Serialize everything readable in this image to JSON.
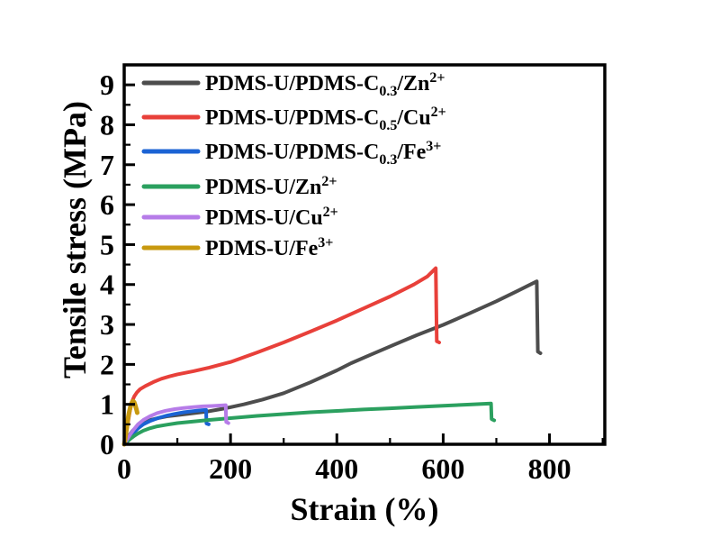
{
  "chart_data": {
    "type": "line",
    "title": "",
    "xlabel": "Strain (%)",
    "ylabel": "Tensile stress (MPa)",
    "xlim": [
      0,
      904
    ],
    "ylim": [
      0,
      9.5
    ],
    "x_major_ticks": [
      0,
      200,
      400,
      600,
      800
    ],
    "x_minor_ticks": [
      100,
      300,
      500,
      700,
      900
    ],
    "y_major_ticks": [
      0,
      1,
      2,
      3,
      4,
      5,
      6,
      7,
      8,
      9
    ],
    "y_minor_ticks": [
      0.5,
      1.5,
      2.5,
      3.5,
      4.5,
      5.5,
      6.5,
      7.5,
      8.5
    ],
    "grid": false,
    "legend_position": "top-left-inside",
    "series": [
      {
        "name": "PDMS-U/PDMS-C_{0.3}/Zn^{2+}",
        "color": "#4d4d4d",
        "width": 4,
        "points": [
          [
            0,
            0
          ],
          [
            4,
            0.1
          ],
          [
            9,
            0.22
          ],
          [
            16,
            0.34
          ],
          [
            25,
            0.45
          ],
          [
            36,
            0.54
          ],
          [
            50,
            0.61
          ],
          [
            65,
            0.66
          ],
          [
            80,
            0.7
          ],
          [
            100,
            0.73
          ],
          [
            125,
            0.77
          ],
          [
            156,
            0.82
          ],
          [
            190,
            0.9
          ],
          [
            225,
            1.0
          ],
          [
            260,
            1.12
          ],
          [
            300,
            1.28
          ],
          [
            350,
            1.55
          ],
          [
            400,
            1.85
          ],
          [
            427,
            2.03
          ],
          [
            460,
            2.22
          ],
          [
            500,
            2.45
          ],
          [
            550,
            2.73
          ],
          [
            600,
            2.99
          ],
          [
            650,
            3.28
          ],
          [
            700,
            3.58
          ],
          [
            740,
            3.84
          ],
          [
            776,
            4.08
          ],
          [
            778,
            2.32
          ],
          [
            783,
            2.28
          ]
        ]
      },
      {
        "name": "PDMS-U/PDMS-C_{0.5}/Cu^{2+}",
        "color": "#e8403a",
        "width": 4,
        "points": [
          [
            0,
            0
          ],
          [
            3,
            0.22
          ],
          [
            6,
            0.45
          ],
          [
            9,
            0.7
          ],
          [
            12,
            0.92
          ],
          [
            15,
            1.08
          ],
          [
            19,
            1.2
          ],
          [
            24,
            1.3
          ],
          [
            30,
            1.38
          ],
          [
            40,
            1.46
          ],
          [
            55,
            1.56
          ],
          [
            70,
            1.64
          ],
          [
            85,
            1.7
          ],
          [
            100,
            1.75
          ],
          [
            130,
            1.83
          ],
          [
            160,
            1.92
          ],
          [
            200,
            2.06
          ],
          [
            250,
            2.3
          ],
          [
            300,
            2.55
          ],
          [
            350,
            2.82
          ],
          [
            400,
            3.1
          ],
          [
            450,
            3.4
          ],
          [
            500,
            3.7
          ],
          [
            545,
            4.0
          ],
          [
            570,
            4.2
          ],
          [
            586,
            4.41
          ],
          [
            588,
            2.58
          ],
          [
            592.5,
            2.55
          ]
        ]
      },
      {
        "name": "PDMS-U/PDMS-C_{0.3}/Fe^{3+}",
        "color": "#1b63d4",
        "width": 4,
        "points": [
          [
            0,
            0
          ],
          [
            5,
            0.08
          ],
          [
            11,
            0.18
          ],
          [
            18,
            0.29
          ],
          [
            26,
            0.4
          ],
          [
            36,
            0.5
          ],
          [
            48,
            0.58
          ],
          [
            62,
            0.65
          ],
          [
            78,
            0.71
          ],
          [
            95,
            0.76
          ],
          [
            112,
            0.8
          ],
          [
            130,
            0.83
          ],
          [
            145,
            0.85
          ],
          [
            154,
            0.86
          ],
          [
            154.8,
            0.52
          ],
          [
            159,
            0.5
          ]
        ]
      },
      {
        "name": "PDMS-U/Zn^{2+}",
        "color": "#2ba05f",
        "width": 4,
        "points": [
          [
            0,
            0
          ],
          [
            5,
            0.06
          ],
          [
            11,
            0.13
          ],
          [
            18,
            0.2
          ],
          [
            26,
            0.27
          ],
          [
            36,
            0.34
          ],
          [
            48,
            0.4
          ],
          [
            62,
            0.45
          ],
          [
            80,
            0.49
          ],
          [
            100,
            0.53
          ],
          [
            130,
            0.57
          ],
          [
            160,
            0.61
          ],
          [
            200,
            0.655
          ],
          [
            250,
            0.71
          ],
          [
            300,
            0.755
          ],
          [
            350,
            0.8
          ],
          [
            400,
            0.835
          ],
          [
            450,
            0.87
          ],
          [
            500,
            0.9
          ],
          [
            550,
            0.935
          ],
          [
            600,
            0.965
          ],
          [
            650,
            0.995
          ],
          [
            690,
            1.02
          ],
          [
            691,
            0.63
          ],
          [
            696,
            0.6
          ]
        ]
      },
      {
        "name": "PDMS-U/Cu^{2+}",
        "color": "#b67ce8",
        "width": 4,
        "points": [
          [
            0,
            0
          ],
          [
            5,
            0.11
          ],
          [
            11,
            0.24
          ],
          [
            18,
            0.37
          ],
          [
            26,
            0.5
          ],
          [
            36,
            0.61
          ],
          [
            48,
            0.7
          ],
          [
            62,
            0.78
          ],
          [
            78,
            0.84
          ],
          [
            95,
            0.88
          ],
          [
            112,
            0.91
          ],
          [
            130,
            0.93
          ],
          [
            148,
            0.95
          ],
          [
            165,
            0.96
          ],
          [
            180,
            0.97
          ],
          [
            191,
            0.98
          ],
          [
            191.8,
            0.56
          ],
          [
            196,
            0.53
          ]
        ]
      },
      {
        "name": "PDMS-U/Fe^{3+}",
        "color": "#c8990f",
        "width": 5,
        "points": [
          [
            0,
            0
          ],
          [
            1.5,
            0.1
          ],
          [
            3,
            0.25
          ],
          [
            5,
            0.45
          ],
          [
            7,
            0.63
          ],
          [
            9,
            0.78
          ],
          [
            11,
            0.9
          ],
          [
            13,
            1.0
          ],
          [
            15,
            1.06
          ],
          [
            17,
            1.08
          ],
          [
            19,
            1.05
          ],
          [
            21,
            0.97
          ],
          [
            23,
            0.87
          ],
          [
            24.5,
            0.79
          ]
        ]
      }
    ]
  }
}
